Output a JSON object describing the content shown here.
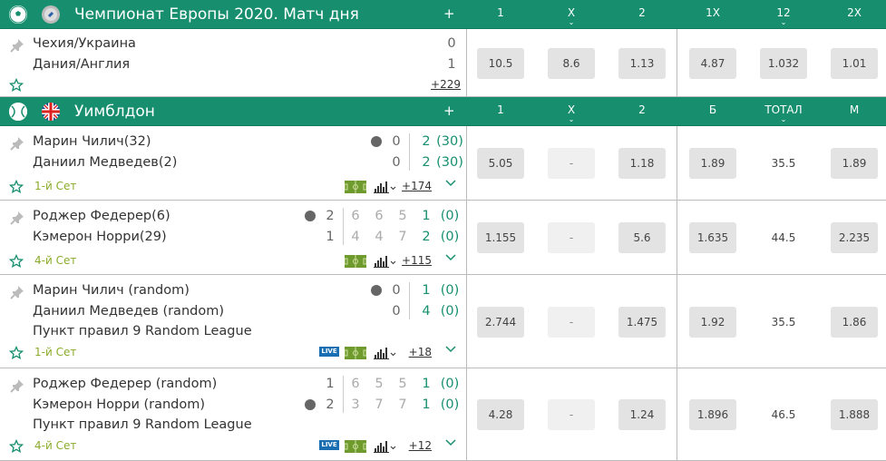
{
  "colors": {
    "header": "#178f6f",
    "status": "#8aab2a",
    "accent": "#178f6f"
  },
  "sections": [
    {
      "title": "Чемпионат Европы 2020. Матч дня",
      "sport_icon": "soccer-ball-icon",
      "flag_icon": "europe-globe-icon",
      "plus": "+",
      "columns": [
        {
          "label": "1"
        },
        {
          "label": "X",
          "chevron": true
        },
        {
          "label": "2"
        },
        {
          "label": "1X"
        },
        {
          "label": "12",
          "chevron": true
        },
        {
          "label": "2X"
        }
      ],
      "events": [
        {
          "teams": [
            "Чехия/Украина",
            "Дания/Англия"
          ],
          "score": [
            "0",
            "1"
          ],
          "more": "+229",
          "odds": [
            "10.5",
            "8.6",
            "1.13",
            "4.87",
            "1.032",
            "1.01"
          ]
        }
      ]
    },
    {
      "title": "Уимблдон",
      "sport_icon": "tennis-ball-icon",
      "flag_icon": "uk-flag-icon",
      "plus": "+",
      "columns": [
        {
          "label": "1"
        },
        {
          "label": "X",
          "chevron": true
        },
        {
          "label": "2"
        },
        {
          "label": "Б"
        },
        {
          "label": "ТОТАЛ",
          "chevron": true
        },
        {
          "label": "М"
        }
      ],
      "events": [
        {
          "teams": [
            "Марин Чилич(32)",
            "Даниил Медведев(2)"
          ],
          "serving": 0,
          "sets": [
            "0",
            "0"
          ],
          "games": [
            [],
            []
          ],
          "current": [
            "2",
            "2"
          ],
          "points": [
            "(30)",
            "(30)"
          ],
          "status": "1-й Сет",
          "live": false,
          "more": "+174",
          "odds": [
            "5.05",
            "-",
            "1.18",
            "1.89",
            "35.5",
            "1.89"
          ]
        },
        {
          "teams": [
            "Роджер Федерер(6)",
            "Кэмерон Норри(29)"
          ],
          "serving": 0,
          "sets": [
            "2",
            "1"
          ],
          "games": [
            [
              "6",
              "6",
              "5"
            ],
            [
              "4",
              "4",
              "7"
            ]
          ],
          "current": [
            "1",
            "2"
          ],
          "points": [
            "(0)",
            "(0)"
          ],
          "status": "4-й Сет",
          "live": false,
          "more": "+115",
          "odds": [
            "1.155",
            "-",
            "5.6",
            "1.635",
            "44.5",
            "2.235"
          ]
        },
        {
          "teams": [
            "Марин Чилич (random)",
            "Даниил Медведев (random)"
          ],
          "league": "Пункт правил 9 Random League",
          "serving": 0,
          "sets": [
            "0",
            "0"
          ],
          "games": [
            [],
            []
          ],
          "current": [
            "1",
            "4"
          ],
          "points": [
            "(0)",
            "(0)"
          ],
          "status": "1-й Сет",
          "live": true,
          "live_label": "LIVE",
          "more": "+18",
          "odds": [
            "2.744",
            "-",
            "1.475",
            "1.92",
            "35.5",
            "1.86"
          ]
        },
        {
          "teams": [
            "Роджер Федерер (random)",
            "Кэмерон Норри (random)"
          ],
          "league": "Пункт правил 9 Random League",
          "serving": 1,
          "sets": [
            "1",
            "2"
          ],
          "games": [
            [
              "6",
              "5",
              "5"
            ],
            [
              "3",
              "7",
              "7"
            ]
          ],
          "current": [
            "1",
            "1"
          ],
          "points": [
            "(0)",
            "(0)"
          ],
          "status": "4-й Сет",
          "live": true,
          "live_label": "LIVE",
          "more": "+12",
          "odds": [
            "4.28",
            "-",
            "1.24",
            "1.896",
            "46.5",
            "1.888"
          ]
        }
      ]
    }
  ]
}
